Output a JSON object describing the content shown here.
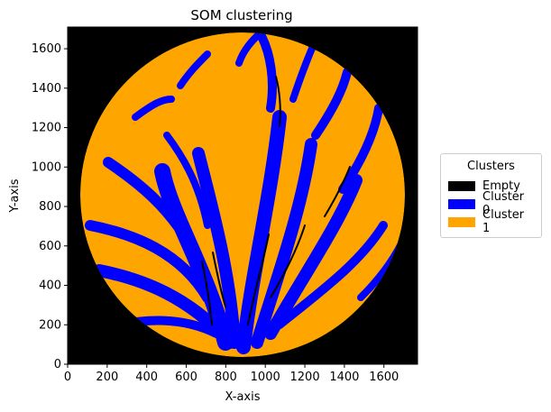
{
  "chart_data": {
    "type": "heatmap",
    "title": "SOM clustering",
    "xlabel": "X-axis",
    "ylabel": "Y-axis",
    "xlim": [
      0,
      1770
    ],
    "ylim": [
      0,
      1710
    ],
    "xticks": [
      0,
      200,
      400,
      600,
      800,
      1000,
      1200,
      1400,
      1600
    ],
    "yticks": [
      0,
      200,
      400,
      600,
      800,
      1000,
      1200,
      1400,
      1600
    ],
    "grid": false,
    "categories": [
      "Empty",
      "Cluster 0",
      "Cluster 1"
    ],
    "colors": {
      "Empty": "#000000",
      "Cluster 0": "#0000ff",
      "Cluster 1": "#ffa500"
    },
    "disk": {
      "center": [
        885,
        860
      ],
      "radius": 820
    },
    "legend": {
      "title": "Clusters",
      "placement": "outside-right"
    }
  }
}
